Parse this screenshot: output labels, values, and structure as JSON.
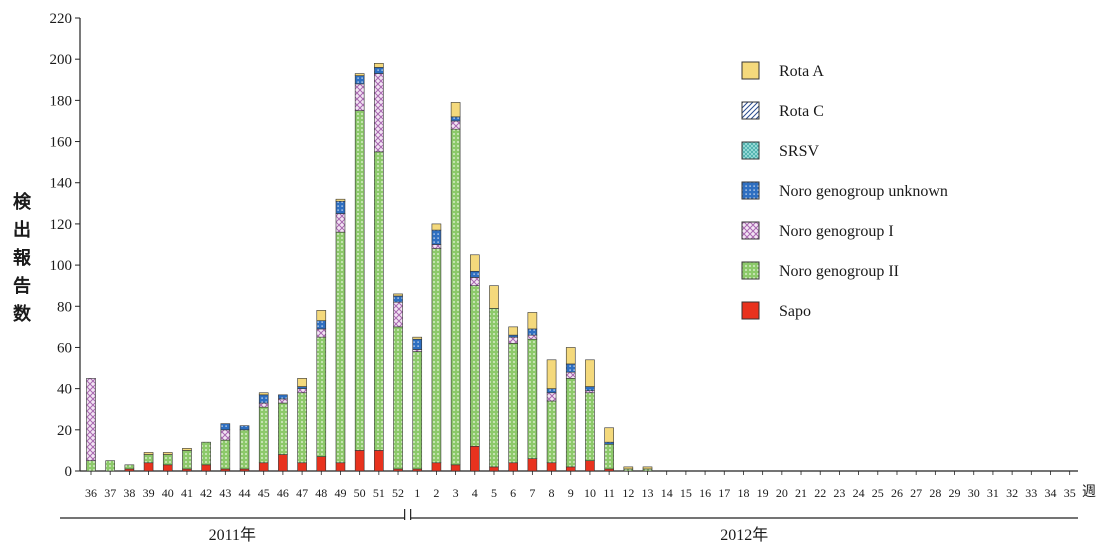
{
  "chart_data": {
    "type": "bar",
    "stacked": true,
    "title": "",
    "subtitle": "",
    "ylabel": "検出報告数",
    "xunit": "週",
    "ylim": [
      0,
      220
    ],
    "yticks": [
      0,
      20,
      40,
      60,
      80,
      100,
      120,
      140,
      160,
      180,
      200,
      220
    ],
    "grid": false,
    "legend_position": "top-right",
    "year_groups": [
      {
        "label": "2011年",
        "weeks": [
          "36",
          "37",
          "38",
          "39",
          "40",
          "41",
          "42",
          "43",
          "44",
          "45",
          "46",
          "47",
          "48",
          "49",
          "50",
          "51",
          "52"
        ]
      },
      {
        "label": "2012年",
        "weeks": [
          "1",
          "2",
          "3",
          "4",
          "5",
          "6",
          "7",
          "8",
          "9",
          "10",
          "11",
          "12",
          "13",
          "14",
          "15",
          "16",
          "17",
          "18",
          "19",
          "20",
          "21",
          "22",
          "23",
          "24",
          "25",
          "26",
          "27",
          "28",
          "29",
          "30",
          "31",
          "32",
          "33",
          "34",
          "35"
        ]
      }
    ],
    "categories": [
      "36",
      "37",
      "38",
      "39",
      "40",
      "41",
      "42",
      "43",
      "44",
      "45",
      "46",
      "47",
      "48",
      "49",
      "50",
      "51",
      "52",
      "1",
      "2",
      "3",
      "4",
      "5",
      "6",
      "7",
      "8",
      "9",
      "10",
      "11",
      "12",
      "13",
      "14",
      "15",
      "16",
      "17",
      "18",
      "19",
      "20",
      "21",
      "22",
      "23",
      "24",
      "25",
      "26",
      "27",
      "28",
      "29",
      "30",
      "31",
      "32",
      "33",
      "34",
      "35"
    ],
    "series": [
      {
        "name": "Sapo",
        "color": "#e8321e",
        "pattern": "solid",
        "values": [
          0,
          0,
          1,
          4,
          3,
          1,
          3,
          1,
          1,
          4,
          8,
          4,
          7,
          4,
          10,
          10,
          1,
          1,
          4,
          3,
          12,
          2,
          4,
          6,
          4,
          2,
          5,
          1,
          0,
          0,
          0,
          0,
          0,
          0,
          0,
          0,
          0,
          0,
          0,
          0,
          0,
          0,
          0,
          0,
          0,
          0,
          0,
          0,
          0,
          0,
          0,
          0
        ]
      },
      {
        "name": "Noro genogroup II",
        "color": "#7fc05a",
        "pattern": "dots",
        "values": [
          5,
          5,
          2,
          4,
          5,
          9,
          11,
          14,
          19,
          27,
          25,
          34,
          58,
          112,
          165,
          145,
          69,
          57,
          104,
          163,
          78,
          77,
          58,
          58,
          30,
          43,
          33,
          12,
          1,
          1,
          0,
          0,
          0,
          0,
          0,
          0,
          0,
          0,
          0,
          0,
          0,
          0,
          0,
          0,
          0,
          0,
          0,
          0,
          0,
          0,
          0,
          0
        ]
      },
      {
        "name": "Noro genogroup I",
        "color": "#c58dc9",
        "pattern": "cross",
        "values": [
          40,
          0,
          0,
          0,
          0,
          0,
          0,
          5,
          0,
          2,
          2,
          2,
          4,
          9,
          13,
          38,
          12,
          1,
          2,
          4,
          4,
          0,
          3,
          2,
          4,
          3,
          1,
          0,
          0,
          0,
          0,
          0,
          0,
          0,
          0,
          0,
          0,
          0,
          0,
          0,
          0,
          0,
          0,
          0,
          0,
          0,
          0,
          0,
          0,
          0,
          0,
          0
        ]
      },
      {
        "name": "Noro genogroup unknown",
        "color": "#2e6fc1",
        "pattern": "grid",
        "values": [
          0,
          0,
          0,
          0,
          0,
          0,
          0,
          3,
          2,
          4,
          2,
          1,
          4,
          6,
          4,
          3,
          3,
          5,
          7,
          2,
          3,
          0,
          1,
          3,
          2,
          4,
          2,
          1,
          0,
          0,
          0,
          0,
          0,
          0,
          0,
          0,
          0,
          0,
          0,
          0,
          0,
          0,
          0,
          0,
          0,
          0,
          0,
          0,
          0,
          0,
          0,
          0
        ]
      },
      {
        "name": "SRSV",
        "color": "#7fd3d0",
        "pattern": "dots",
        "values": [
          0,
          0,
          0,
          0,
          0,
          0,
          0,
          0,
          0,
          0,
          0,
          0,
          0,
          0,
          0,
          0,
          0,
          0,
          0,
          0,
          0,
          0,
          0,
          0,
          0,
          0,
          0,
          0,
          0,
          0,
          0,
          0,
          0,
          0,
          0,
          0,
          0,
          0,
          0,
          0,
          0,
          0,
          0,
          0,
          0,
          0,
          0,
          0,
          0,
          0,
          0,
          0
        ]
      },
      {
        "name": "Rota C",
        "color": "#3a5fa8",
        "pattern": "hatch",
        "values": [
          0,
          0,
          0,
          0,
          0,
          0,
          0,
          0,
          0,
          0,
          0,
          0,
          0,
          0,
          0,
          0,
          0,
          0,
          0,
          0,
          0,
          0,
          0,
          0,
          0,
          0,
          0,
          0,
          0,
          0,
          0,
          0,
          0,
          0,
          0,
          0,
          0,
          0,
          0,
          0,
          0,
          0,
          0,
          0,
          0,
          0,
          0,
          0,
          0,
          0,
          0,
          0
        ]
      },
      {
        "name": "Rota A",
        "color": "#f4d97c",
        "pattern": "solid",
        "values": [
          0,
          0,
          0,
          1,
          1,
          1,
          0,
          0,
          0,
          1,
          0,
          4,
          5,
          1,
          1,
          2,
          1,
          1,
          3,
          7,
          8,
          11,
          4,
          8,
          14,
          8,
          13,
          7,
          1,
          1,
          0,
          0,
          0,
          0,
          0,
          0,
          0,
          0,
          0,
          0,
          0,
          0,
          0,
          0,
          0,
          0,
          0,
          0,
          0,
          0,
          0,
          0
        ]
      }
    ]
  }
}
